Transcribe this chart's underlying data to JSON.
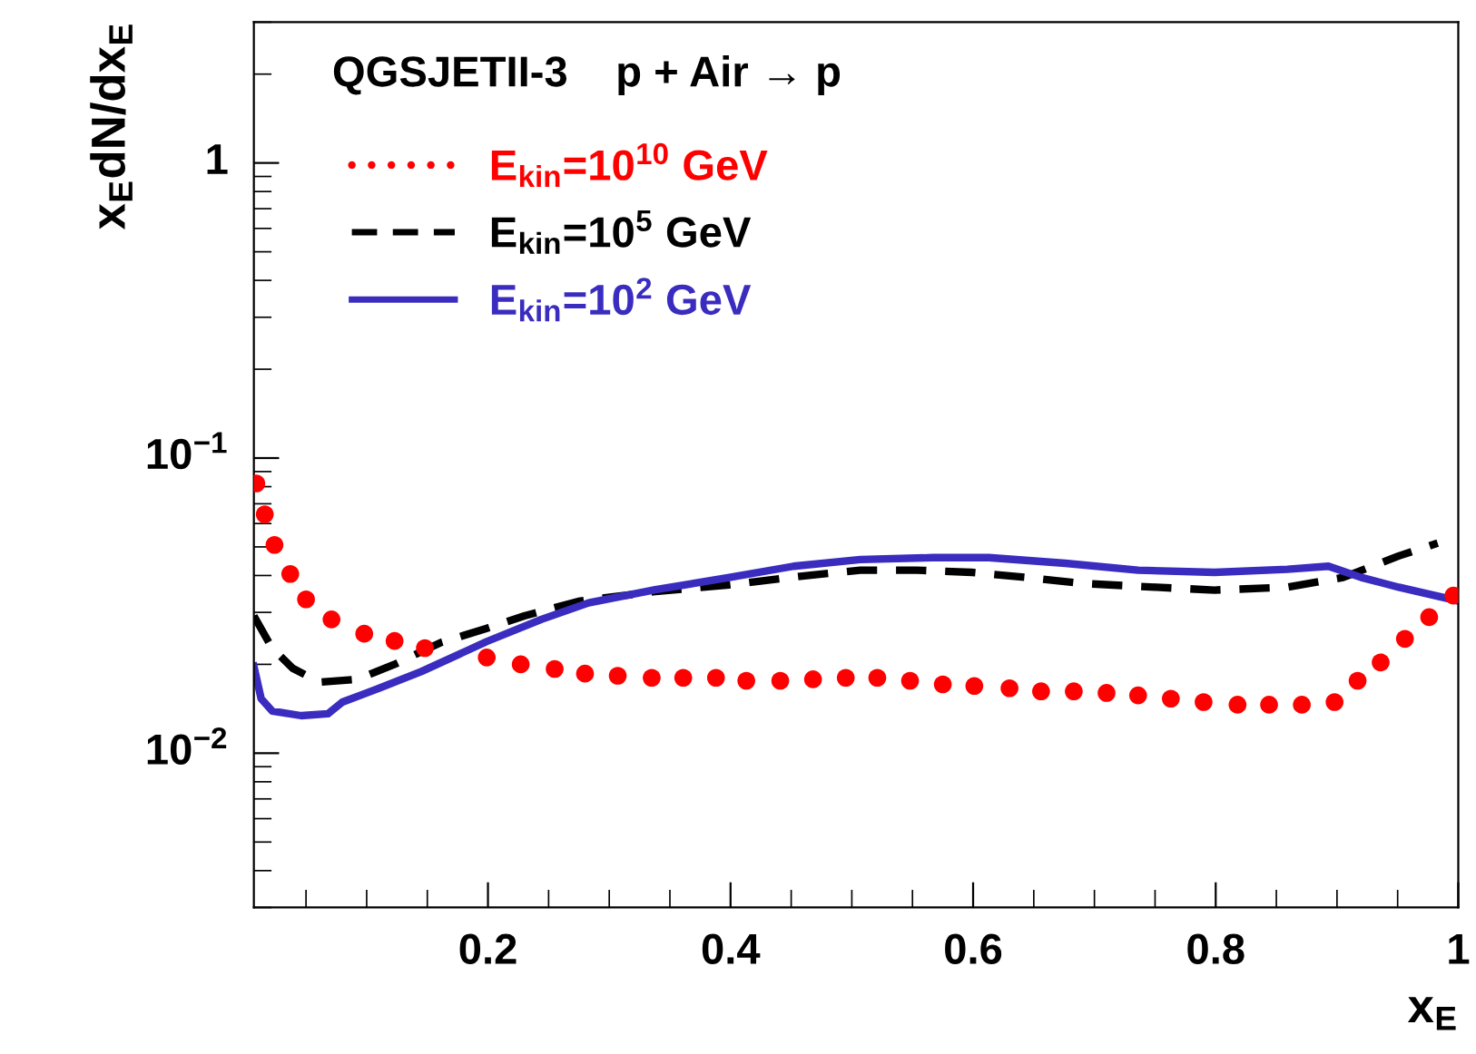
{
  "chart_data": {
    "type": "line",
    "annotations": [
      "QGSJETII-3    p + Air → p"
    ],
    "xlabel": "x$_{E}$",
    "ylabel": "x$_{E}$dN/dx$_{E}$",
    "log": "y",
    "xlim": [
      0.007,
      1
    ],
    "ylim": [
      0.003,
      3
    ],
    "xticks": [
      {
        "value": 0.2,
        "label": "0.2"
      },
      {
        "value": 0.4,
        "label": "0.4"
      },
      {
        "value": 0.6,
        "label": "0.6"
      },
      {
        "value": 0.8,
        "label": "0.8"
      },
      1
    ],
    "yticks": [
      {
        "value": 0.01,
        "label": "10$^{−2}$"
      },
      {
        "value": 0.1,
        "label": "10$^{−1}$"
      },
      1
    ],
    "legend": "top left",
    "grid": false,
    "series": [
      {
        "name": "E$_{kin}$=10$^{10}$ GeV",
        "type": "scatter",
        "marker": "circle",
        "color": "#ff0000",
        "line_style": "dotted",
        "x": [
          0.009,
          0.016,
          0.024,
          0.037,
          0.05,
          0.071,
          0.098,
          0.123,
          0.148,
          0.199,
          0.227,
          0.255,
          0.28,
          0.307,
          0.335,
          0.361,
          0.388,
          0.413,
          0.441,
          0.468,
          0.495,
          0.521,
          0.548,
          0.575,
          0.601,
          0.63,
          0.656,
          0.683,
          0.71,
          0.736,
          0.763,
          0.79,
          0.818,
          0.844,
          0.871,
          0.898,
          0.917,
          0.936,
          0.956,
          0.976,
          0.996
        ],
        "values": [
          0.082,
          0.0645,
          0.0508,
          0.0405,
          0.0332,
          0.0284,
          0.0254,
          0.024,
          0.0227,
          0.0211,
          0.02,
          0.0193,
          0.0186,
          0.0183,
          0.018,
          0.018,
          0.018,
          0.0176,
          0.0176,
          0.0178,
          0.018,
          0.018,
          0.0176,
          0.0171,
          0.0169,
          0.0166,
          0.0162,
          0.0162,
          0.016,
          0.0157,
          0.0153,
          0.0149,
          0.0146,
          0.0146,
          0.0146,
          0.0149,
          0.0176,
          0.0203,
          0.0244,
          0.0289,
          0.0342
        ]
      },
      {
        "name": "E$_{kin}$=10$^{5}$ GeV",
        "color": "#000000",
        "line_style": "dashed",
        "x": [
          0.007,
          0.022,
          0.039,
          0.061,
          0.092,
          0.123,
          0.161,
          0.199,
          0.23,
          0.276,
          0.338,
          0.399,
          0.461,
          0.507,
          0.553,
          0.599,
          0.644,
          0.69,
          0.751,
          0.799,
          0.859,
          0.905,
          0.951,
          0.983
        ],
        "values": [
          0.0292,
          0.0227,
          0.0194,
          0.0174,
          0.0178,
          0.02,
          0.0237,
          0.0265,
          0.0292,
          0.0328,
          0.0353,
          0.0372,
          0.0399,
          0.0417,
          0.0417,
          0.041,
          0.0394,
          0.0376,
          0.0365,
          0.0357,
          0.0365,
          0.0394,
          0.0466,
          0.0515
        ]
      },
      {
        "name": "E$_{kin}$=10$^{2}$ GeV",
        "color": "#3a2cbf",
        "line_style": "solid",
        "x": [
          0.007,
          0.013,
          0.022,
          0.046,
          0.068,
          0.08,
          0.107,
          0.145,
          0.199,
          0.244,
          0.283,
          0.338,
          0.399,
          0.452,
          0.507,
          0.567,
          0.613,
          0.676,
          0.736,
          0.799,
          0.859,
          0.893,
          0.92,
          0.951,
          1.0
        ],
        "values": [
          0.0197,
          0.0153,
          0.0139,
          0.0134,
          0.0136,
          0.0149,
          0.0164,
          0.0189,
          0.0239,
          0.0284,
          0.0323,
          0.0358,
          0.0394,
          0.043,
          0.0453,
          0.046,
          0.046,
          0.044,
          0.0417,
          0.041,
          0.042,
          0.043,
          0.0394,
          0.0365,
          0.0328
        ]
      }
    ]
  }
}
